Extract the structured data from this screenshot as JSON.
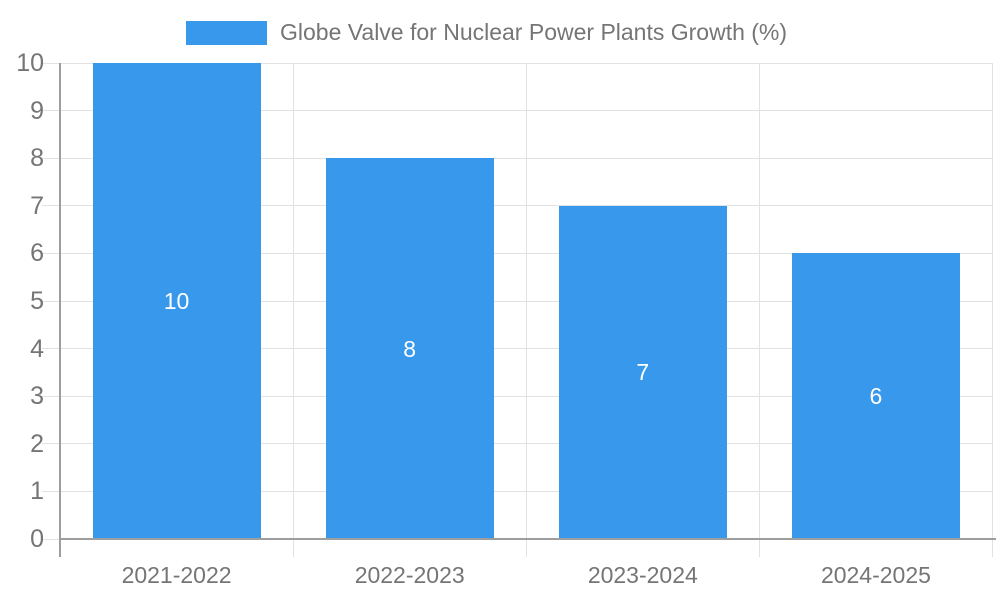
{
  "chart_data": {
    "type": "bar",
    "title": "Globe Valve for Nuclear Power Plants Growth (%)",
    "legend": {
      "position": "top",
      "label": "Globe Valve for Nuclear Power Plants Growth (%)"
    },
    "categories": [
      "2021-2022",
      "2022-2023",
      "2023-2024",
      "2024-2025"
    ],
    "values": [
      10,
      8,
      7,
      6
    ],
    "bar_labels": [
      "10",
      "8",
      "7",
      "6"
    ],
    "xlabel": "",
    "ylabel": "",
    "ylim": [
      0,
      10
    ],
    "yticks": [
      0,
      1,
      2,
      3,
      4,
      5,
      6,
      7,
      8,
      9,
      10
    ],
    "grid": true,
    "colors": {
      "bar": "#3898EC",
      "grid": "#E2E2E2",
      "axis": "#9E9E9E",
      "tick_text": "#757575",
      "bar_label": "#FFFFFF",
      "background": "#FFFFFF"
    }
  }
}
